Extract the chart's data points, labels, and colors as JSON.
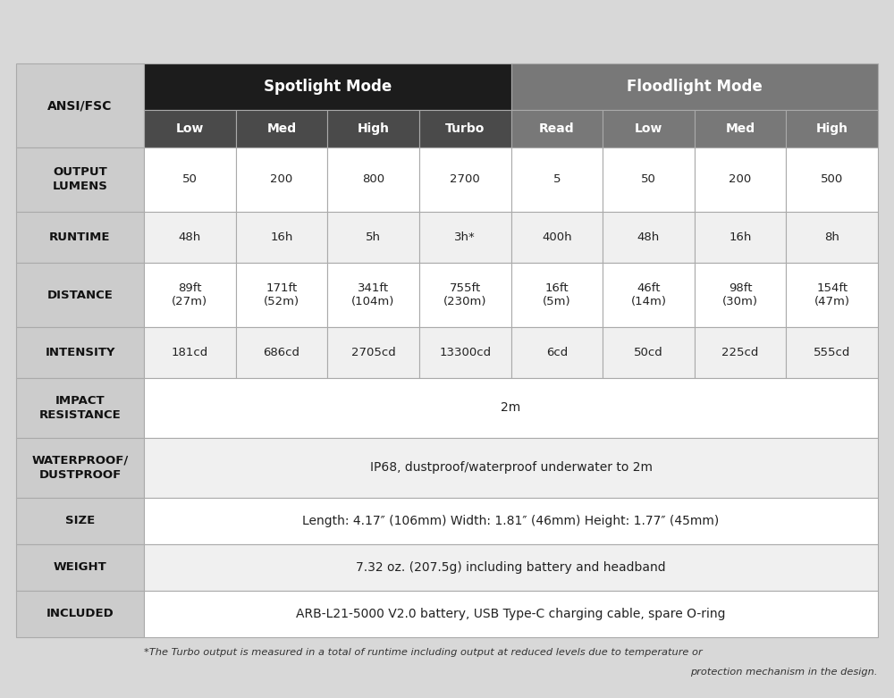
{
  "fig_width": 10.0,
  "fig_height": 7.81,
  "bg_color": "#d8d8d8",
  "header1_bg": "#1c1c1c",
  "header2_spotlight_bg": "#4a4a4a",
  "header2_flood_bg": "#787878",
  "header1_fg": "#ffffff",
  "header2_fg": "#ffffff",
  "label_col_bg": "#cccccc",
  "data_row_bg": "#f8f8f8",
  "alt_row_bg": "#f8f8f8",
  "label_fg": "#111111",
  "data_fg": "#222222",
  "grid_color": "#aaaaaa",
  "col1_label": "ANSI/FSC",
  "spotlight_label": "Spotlight Mode",
  "floodlight_label": "Floodlight Mode",
  "subheaders": [
    "Low",
    "Med",
    "High",
    "Turbo",
    "Read",
    "Low",
    "Med",
    "High"
  ],
  "rows": [
    {
      "label": "OUTPUT\nLUMENS",
      "values": [
        "50",
        "200",
        "800",
        "2700",
        "5",
        "50",
        "200",
        "500"
      ],
      "span": false,
      "label_bold": true
    },
    {
      "label": "RUNTIME",
      "values": [
        "48h",
        "16h",
        "5h",
        "3h*",
        "400h",
        "48h",
        "16h",
        "8h"
      ],
      "span": false,
      "label_bold": true
    },
    {
      "label": "DISTANCE",
      "values": [
        "89ft\n(27m)",
        "171ft\n(52m)",
        "341ft\n(104m)",
        "755ft\n(230m)",
        "16ft\n(5m)",
        "46ft\n(14m)",
        "98ft\n(30m)",
        "154ft\n(47m)"
      ],
      "span": false,
      "label_bold": true
    },
    {
      "label": "INTENSITY",
      "values": [
        "181cd",
        "686cd",
        "2705cd",
        "13300cd",
        "6cd",
        "50cd",
        "225cd",
        "555cd"
      ],
      "span": false,
      "label_bold": true
    },
    {
      "label": "IMPACT\nRESISTANCE",
      "values": [
        "2m"
      ],
      "span": true,
      "label_bold": true
    },
    {
      "label": "WATERPROOF/\nDUSTPROOF",
      "values": [
        "IP68, dustproof/waterproof underwater to 2m"
      ],
      "span": true,
      "label_bold": true
    },
    {
      "label": "SIZE",
      "values": [
        "Length: 4.17″ (106mm) Width: 1.81″ (46mm) Height: 1.77″ (45mm)"
      ],
      "span": true,
      "label_bold": true
    },
    {
      "label": "WEIGHT",
      "values": [
        "7.32 oz. (207.5g) including battery and headband"
      ],
      "span": true,
      "label_bold": true
    },
    {
      "label": "INCLUDED",
      "values": [
        "ARB-L21-5000 V2.0 battery, USB Type-C charging cable, spare O-ring"
      ],
      "span": true,
      "label_bold": true
    }
  ],
  "footnote_line1": "*The Turbo output is measured in a total of runtime including output at reduced levels due to temperature or",
  "footnote_line2": "protection mechanism in the design."
}
